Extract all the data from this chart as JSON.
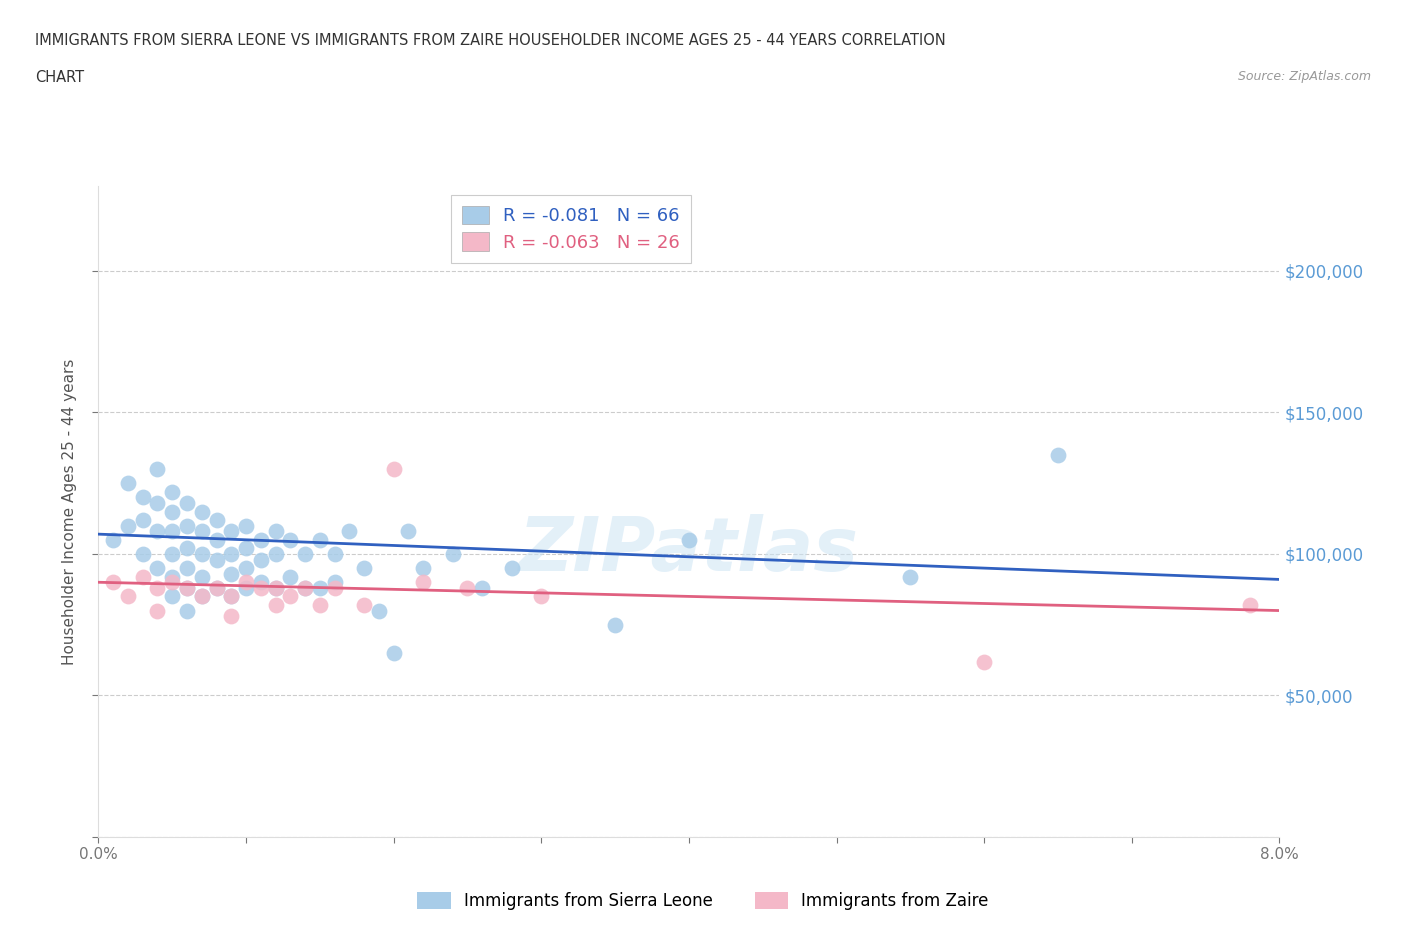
{
  "title_line1": "IMMIGRANTS FROM SIERRA LEONE VS IMMIGRANTS FROM ZAIRE HOUSEHOLDER INCOME AGES 25 - 44 YEARS CORRELATION",
  "title_line2": "CHART",
  "source_text": "Source: ZipAtlas.com",
  "ylabel": "Householder Income Ages 25 - 44 years",
  "xlim": [
    0.0,
    0.08
  ],
  "ylim": [
    0,
    230000
  ],
  "yticks": [
    0,
    50000,
    100000,
    150000,
    200000
  ],
  "ytick_labels": [
    "",
    "$50,000",
    "$100,000",
    "$150,000",
    "$200,000"
  ],
  "xticks": [
    0.0,
    0.01,
    0.02,
    0.03,
    0.04,
    0.05,
    0.06,
    0.07,
    0.08
  ],
  "xtick_labels": [
    "0.0%",
    "",
    "",
    "",
    "",
    "",
    "",
    "",
    "8.0%"
  ],
  "sierra_leone_color": "#a8cce8",
  "zaire_color": "#f4b8c8",
  "sierra_leone_line_color": "#3060c0",
  "zaire_line_color": "#e06080",
  "legend_label_sl": "R = -0.081   N = 66",
  "legend_label_z": "R = -0.063   N = 26",
  "legend_label_bottom_sl": "Immigrants from Sierra Leone",
  "legend_label_bottom_z": "Immigrants from Zaire",
  "watermark": "ZIPatlas",
  "background_color": "#ffffff",
  "grid_color": "#cccccc",
  "right_axis_color": "#5b9bd5",
  "sierra_leone_x": [
    0.001,
    0.002,
    0.002,
    0.003,
    0.003,
    0.003,
    0.004,
    0.004,
    0.004,
    0.004,
    0.005,
    0.005,
    0.005,
    0.005,
    0.005,
    0.005,
    0.006,
    0.006,
    0.006,
    0.006,
    0.006,
    0.006,
    0.007,
    0.007,
    0.007,
    0.007,
    0.007,
    0.008,
    0.008,
    0.008,
    0.008,
    0.009,
    0.009,
    0.009,
    0.009,
    0.01,
    0.01,
    0.01,
    0.01,
    0.011,
    0.011,
    0.011,
    0.012,
    0.012,
    0.012,
    0.013,
    0.013,
    0.014,
    0.014,
    0.015,
    0.015,
    0.016,
    0.016,
    0.017,
    0.018,
    0.019,
    0.02,
    0.021,
    0.022,
    0.024,
    0.026,
    0.028,
    0.035,
    0.04,
    0.055,
    0.065
  ],
  "sierra_leone_y": [
    105000,
    125000,
    110000,
    120000,
    112000,
    100000,
    130000,
    118000,
    108000,
    95000,
    122000,
    115000,
    108000,
    100000,
    92000,
    85000,
    118000,
    110000,
    102000,
    95000,
    88000,
    80000,
    115000,
    108000,
    100000,
    92000,
    85000,
    112000,
    105000,
    98000,
    88000,
    108000,
    100000,
    93000,
    85000,
    110000,
    102000,
    95000,
    88000,
    105000,
    98000,
    90000,
    108000,
    100000,
    88000,
    105000,
    92000,
    100000,
    88000,
    105000,
    88000,
    100000,
    90000,
    108000,
    95000,
    80000,
    65000,
    108000,
    95000,
    100000,
    88000,
    95000,
    75000,
    105000,
    92000,
    135000
  ],
  "zaire_x": [
    0.001,
    0.002,
    0.003,
    0.004,
    0.004,
    0.005,
    0.006,
    0.007,
    0.008,
    0.009,
    0.009,
    0.01,
    0.011,
    0.012,
    0.012,
    0.013,
    0.014,
    0.015,
    0.016,
    0.018,
    0.02,
    0.022,
    0.025,
    0.03,
    0.06,
    0.078
  ],
  "zaire_y": [
    90000,
    85000,
    92000,
    88000,
    80000,
    90000,
    88000,
    85000,
    88000,
    85000,
    78000,
    90000,
    88000,
    82000,
    88000,
    85000,
    88000,
    82000,
    88000,
    82000,
    130000,
    90000,
    88000,
    85000,
    62000,
    82000
  ],
  "sl_line_y0": 107000,
  "sl_line_y1": 91000,
  "z_line_y0": 90000,
  "z_line_y1": 80000
}
